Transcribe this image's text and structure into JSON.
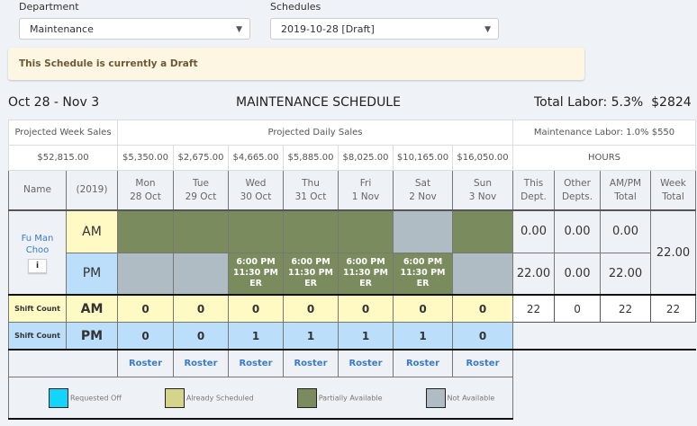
{
  "filters": {
    "department_label": "Department",
    "department_value": "Maintenance",
    "schedules_label": "Schedules",
    "schedules_value": "2019-10-28 [Draft]"
  },
  "alert": "This Schedule is currently a Draft",
  "header": {
    "date_range": "Oct 28 - Nov 3",
    "title": "MAINTENANCE SCHEDULE",
    "total_labor": "Total Labor: 5.3%",
    "total_cost": "$2824"
  },
  "table": {
    "projected_week_sales_label": "Projected Week Sales",
    "projected_daily_sales_label": "Projected Daily Sales",
    "dept_labor": "Maintenance Labor: 1.0%  $550",
    "week_sales": "$52,815.00",
    "hours_label": "HOURS",
    "name_col": "Name",
    "year_col": "(2019)",
    "days": [
      {
        "day": "Mon",
        "date": "28 Oct",
        "sales": "$5,350.00",
        "am": "partial",
        "pm": "none",
        "pm_text": [
          "",
          "",
          ""
        ],
        "am_count": "0",
        "pm_count": "0"
      },
      {
        "day": "Tue",
        "date": "29 Oct",
        "sales": "$2,675.00",
        "am": "partial",
        "pm": "none",
        "pm_text": [
          "",
          "",
          ""
        ],
        "am_count": "0",
        "pm_count": "0"
      },
      {
        "day": "Wed",
        "date": "30 Oct",
        "sales": "$4,665.00",
        "am": "partial",
        "pm": "partial",
        "pm_text": [
          "6:00 PM",
          "11:30 PM",
          "ER"
        ],
        "am_count": "0",
        "pm_count": "1"
      },
      {
        "day": "Thu",
        "date": "31 Oct",
        "sales": "$5,885.00",
        "am": "partial",
        "pm": "partial",
        "pm_text": [
          "6:00 PM",
          "11:30 PM",
          "ER"
        ],
        "am_count": "0",
        "pm_count": "1"
      },
      {
        "day": "Fri",
        "date": "1 Nov",
        "sales": "$8,025.00",
        "am": "partial",
        "pm": "partial",
        "pm_text": [
          "6:00 PM",
          "11:30 PM",
          "ER"
        ],
        "am_count": "0",
        "pm_count": "1"
      },
      {
        "day": "Sat",
        "date": "2 Nov",
        "sales": "$10,165.00",
        "am": "none",
        "pm": "partial",
        "pm_text": [
          "6:00 PM",
          "11:30 PM",
          "ER"
        ],
        "am_count": "0",
        "pm_count": "1"
      },
      {
        "day": "Sun",
        "date": "3 Nov",
        "sales": "$16,050.00",
        "am": "partial",
        "pm": "none",
        "pm_text": [
          "",
          "",
          ""
        ],
        "am_count": "0",
        "pm_count": "0"
      }
    ],
    "hours_cols": [
      "This Dept.",
      "Other Depts.",
      "AM/PM Total",
      "Week Total"
    ],
    "hours_head": [
      [
        "This",
        "Dept."
      ],
      [
        "Other",
        "Depts."
      ],
      [
        "AM/PM",
        "Total"
      ],
      [
        "Week",
        "Total"
      ]
    ],
    "employee": {
      "name": "Fu Man Choo",
      "info": "i",
      "am_label": "AM",
      "pm_label": "PM",
      "am_hours": [
        "0.00",
        "0.00",
        "0.00"
      ],
      "pm_hours": [
        "22.00",
        "0.00",
        "22.00"
      ],
      "week_total": "22.00"
    },
    "shift_label": "Shift Count",
    "am": "AM",
    "pm": "PM",
    "shift_totals": [
      "22",
      "0",
      "22",
      "22"
    ],
    "roster": "Roster"
  },
  "legend": [
    {
      "label": "Requested Off",
      "color": "#12d4fc"
    },
    {
      "label": "Already Scheduled",
      "color": "#d4d48a"
    },
    {
      "label": "Partially Available",
      "color": "#7a8b5e"
    },
    {
      "label": "Not Available",
      "color": "#b0bcc4"
    }
  ]
}
